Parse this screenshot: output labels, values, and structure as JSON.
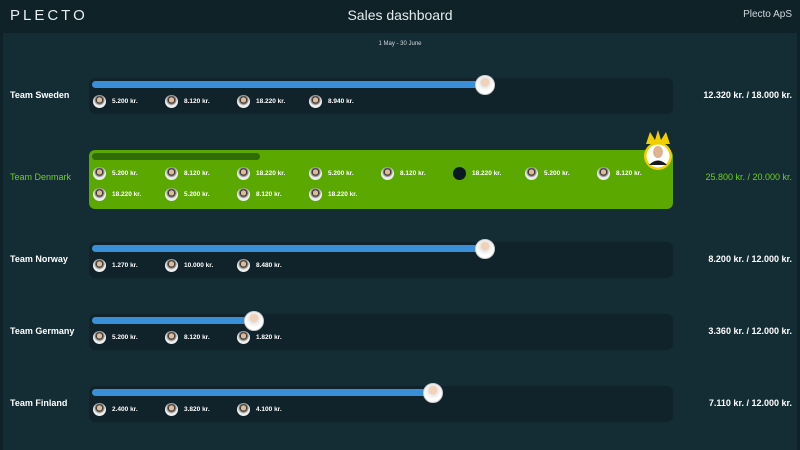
{
  "header": {
    "logo": "PLECTO",
    "title": "Sales dashboard",
    "company": "Plecto ApS"
  },
  "period": "1 May - 30 June",
  "colors": {
    "bar": "#3a8fd9",
    "winner_card": "#5aa800",
    "winner_text": "#6fd11a",
    "track": "#10222a"
  },
  "teams": [
    {
      "name": "Team Sweden",
      "score": "12.320 kr. / 18.000 kr.",
      "progress": 0.68,
      "winner": false,
      "members": [
        "5.200 kr.",
        "8.120 kr.",
        "18.220 kr.",
        "8.940 kr."
      ]
    },
    {
      "name": "Team Denmark",
      "score": "25.800 kr. / 20.000 kr.",
      "progress": 0.29,
      "winner": true,
      "members": [
        "5.200 kr.",
        "8.120 kr.",
        "18.220 kr.",
        "5.200 kr.",
        "8.120 kr.",
        "18.220 kr.",
        "5.200 kr.",
        "8.120 kr.",
        "18.220 kr.",
        "5.200 kr.",
        "8.120 kr.",
        "18.220 kr."
      ]
    },
    {
      "name": "Team Norway",
      "score": "8.200 kr. / 12.000 kr.",
      "progress": 0.68,
      "winner": false,
      "members": [
        "1.270 kr.",
        "10.000 kr.",
        "8.480 kr."
      ]
    },
    {
      "name": "Team Germany",
      "score": "3.360 kr. / 12.000 kr.",
      "progress": 0.28,
      "winner": false,
      "members": [
        "5.200 kr.",
        "8.120 kr.",
        "1.820 kr."
      ]
    },
    {
      "name": "Team Finland",
      "score": "7.110 kr. / 12.000 kr.",
      "progress": 0.59,
      "winner": false,
      "members": [
        "2.400 kr.",
        "3.820 kr.",
        "4.100 kr."
      ]
    }
  ]
}
